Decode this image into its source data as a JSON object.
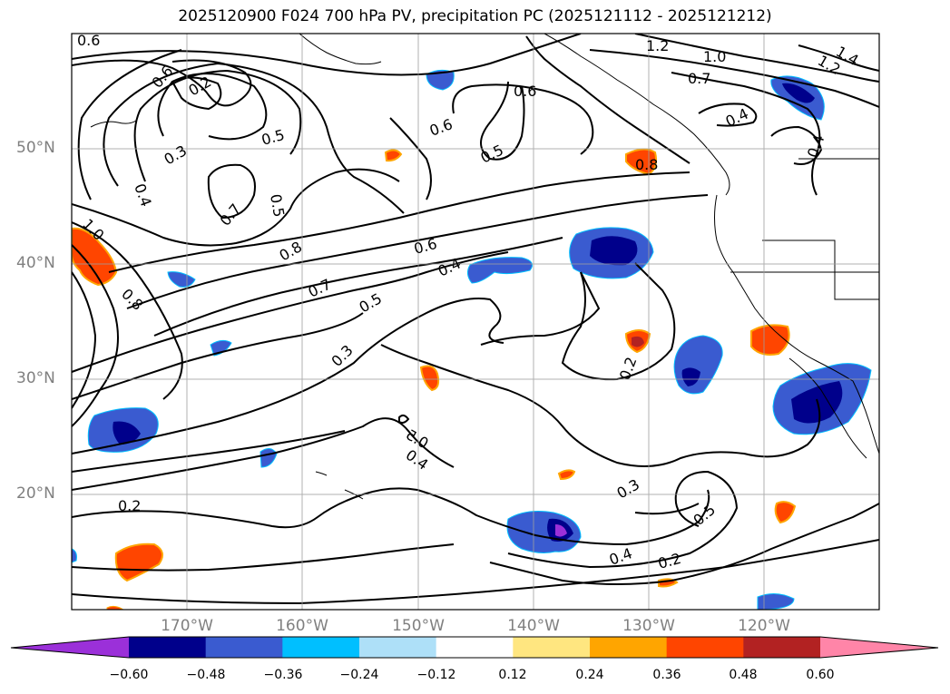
{
  "title": "2025120900 F024 700 hPa PV, precipitation PC (2025121112 - 2025121212)",
  "axes": {
    "lat_labels": [
      "50°N",
      "40°N",
      "30°N",
      "20°N"
    ],
    "lon_labels": [
      "170°W",
      "160°W",
      "150°W",
      "140°W",
      "130°W",
      "120°W"
    ]
  },
  "contour_labels": [
    "0.6",
    "0.6",
    "0.2",
    "0.3",
    "0.4",
    "0.5",
    "0.5",
    "0.7",
    "1.0",
    "0.8",
    "0.8",
    "0.7",
    "0.6",
    "0.5",
    "0.6",
    "0.5",
    "0.4",
    "0.5",
    "0.3",
    "0.4",
    "0.2",
    "0.2",
    "0.3",
    "0.5",
    "0.4",
    "0.2",
    "0.6",
    "1.2",
    "1.0",
    "0.7",
    "1.4",
    "1.2",
    "0.4",
    "0.4",
    "0.8"
  ],
  "colorbar": {
    "ticks": [
      "−0.60",
      "−0.48",
      "−0.36",
      "−0.24",
      "−0.12",
      "0.12",
      "0.24",
      "0.36",
      "0.48",
      "0.60"
    ],
    "colors": [
      "#9b30d9",
      "#00008b",
      "#3a5bd0",
      "#00bfff",
      "#aee0f8",
      "#ffffff",
      "#ffe680",
      "#ffa500",
      "#ff4500",
      "#b22222",
      "#ff85a8"
    ]
  }
}
